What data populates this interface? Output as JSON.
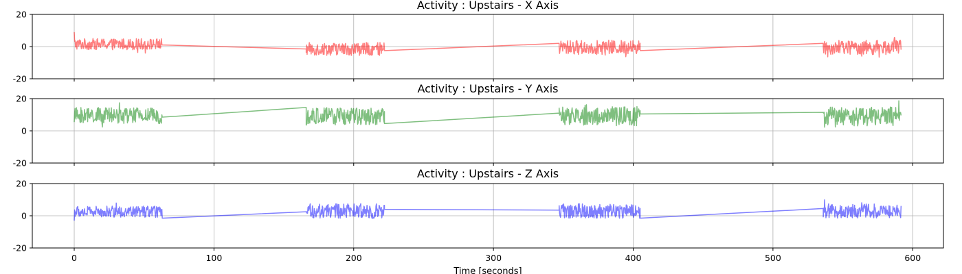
{
  "chart_data": [
    {
      "type": "line",
      "title": "Activity : Upstairs - X Axis",
      "xlabel": "",
      "ylabel": "",
      "xlim": [
        -30,
        622
      ],
      "ylim": [
        -20,
        20
      ],
      "yticks": [
        -20,
        0,
        20
      ],
      "xticks": [
        0,
        100,
        200,
        300,
        400,
        500,
        600
      ],
      "grid": true,
      "color": "#ff0000",
      "alpha": 0.5,
      "segments": [
        {
          "start": 0,
          "end": 63,
          "mean": 1.5,
          "amplitude": 3.5,
          "first": 9
        },
        {
          "start": 166,
          "end": 222,
          "mean": -1.5,
          "amplitude": 4.0
        },
        {
          "start": 347,
          "end": 405,
          "mean": -0.5,
          "amplitude": 4.5
        },
        {
          "start": 536,
          "end": 592,
          "mean": -0.5,
          "amplitude": 4.5
        }
      ],
      "connectors": [
        {
          "x": [
            63,
            166
          ],
          "y": [
            1.0,
            -1.5
          ]
        },
        {
          "x": [
            222,
            347
          ],
          "y": [
            -2.5,
            2.0
          ]
        },
        {
          "x": [
            405,
            536
          ],
          "y": [
            -2.5,
            2.0
          ]
        }
      ]
    },
    {
      "type": "line",
      "title": "Activity : Upstairs - Y Axis",
      "xlabel": "",
      "ylabel": "",
      "xlim": [
        -30,
        622
      ],
      "ylim": [
        -20,
        20
      ],
      "yticks": [
        -20,
        0,
        20
      ],
      "xticks": [
        0,
        100,
        200,
        300,
        400,
        500,
        600
      ],
      "grid": true,
      "color": "#008000",
      "alpha": 0.5,
      "segments": [
        {
          "start": 0,
          "end": 63,
          "mean": 9.5,
          "amplitude": 5.0
        },
        {
          "start": 166,
          "end": 222,
          "mean": 9.0,
          "amplitude": 5.5
        },
        {
          "start": 347,
          "end": 405,
          "mean": 9.0,
          "amplitude": 6.0
        },
        {
          "start": 536,
          "end": 592,
          "mean": 9.0,
          "amplitude": 6.0
        }
      ],
      "connectors": [
        {
          "x": [
            63,
            166
          ],
          "y": [
            8.5,
            14.5
          ]
        },
        {
          "x": [
            222,
            347
          ],
          "y": [
            4.5,
            11.0
          ]
        },
        {
          "x": [
            405,
            536
          ],
          "y": [
            10.5,
            11.5
          ]
        }
      ]
    },
    {
      "type": "line",
      "title": "Activity : Upstairs - Z Axis",
      "xlabel": "Time [seconds]",
      "ylabel": "",
      "xlim": [
        -30,
        622
      ],
      "ylim": [
        -20,
        20
      ],
      "yticks": [
        -20,
        0,
        20
      ],
      "xticks": [
        0,
        100,
        200,
        300,
        400,
        500,
        600
      ],
      "grid": true,
      "color": "#0000ff",
      "alpha": 0.5,
      "segments": [
        {
          "start": 0,
          "end": 63,
          "mean": 2.5,
          "amplitude": 3.5,
          "first": -3
        },
        {
          "start": 166,
          "end": 222,
          "mean": 3.0,
          "amplitude": 4.5
        },
        {
          "start": 347,
          "end": 405,
          "mean": 3.0,
          "amplitude": 4.5
        },
        {
          "start": 536,
          "end": 592,
          "mean": 3.0,
          "amplitude": 4.5
        }
      ],
      "connectors": [
        {
          "x": [
            63,
            166
          ],
          "y": [
            -1.5,
            2.5
          ]
        },
        {
          "x": [
            222,
            347
          ],
          "y": [
            4.0,
            3.5
          ]
        },
        {
          "x": [
            405,
            536
          ],
          "y": [
            -1.5,
            4.5
          ]
        }
      ]
    }
  ]
}
